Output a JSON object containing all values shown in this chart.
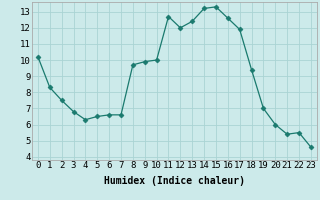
{
  "x": [
    0,
    1,
    2,
    3,
    4,
    5,
    6,
    7,
    8,
    9,
    10,
    11,
    12,
    13,
    14,
    15,
    16,
    17,
    18,
    19,
    20,
    21,
    22,
    23
  ],
  "y": [
    10.2,
    8.3,
    7.5,
    6.8,
    6.3,
    6.5,
    6.6,
    6.6,
    9.7,
    9.9,
    10.0,
    12.7,
    12.0,
    12.4,
    13.2,
    13.3,
    12.6,
    11.9,
    9.4,
    7.0,
    6.0,
    5.4,
    5.5,
    4.6
  ],
  "line_color": "#1a7a6e",
  "marker": "D",
  "marker_size": 2.5,
  "bg_color": "#cceaea",
  "grid_color": "#aad4d4",
  "xlabel": "Humidex (Indice chaleur)",
  "ylim": [
    3.8,
    13.6
  ],
  "xlim": [
    -0.5,
    23.5
  ],
  "yticks": [
    4,
    5,
    6,
    7,
    8,
    9,
    10,
    11,
    12,
    13
  ],
  "xticks": [
    0,
    1,
    2,
    3,
    4,
    5,
    6,
    7,
    8,
    9,
    10,
    11,
    12,
    13,
    14,
    15,
    16,
    17,
    18,
    19,
    20,
    21,
    22,
    23
  ],
  "xlabel_fontsize": 7,
  "tick_fontsize": 6.5
}
